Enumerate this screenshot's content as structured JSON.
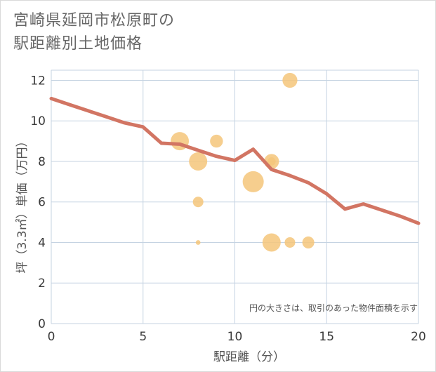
{
  "title": {
    "line1": "宮崎県延岡市松原町の",
    "line2": "駅距離別土地価格"
  },
  "colors": {
    "grid": "#c5d3e2",
    "line": "#d27563",
    "bubble": "#f5c57a"
  },
  "chart_data": {
    "type": "scatter",
    "xlabel": "駅距離（分）",
    "ylabel": "坪（3.3㎡）単価（万円）",
    "note": "円の大きさは、取引のあった物件面積を示す",
    "xlim": [
      0,
      20
    ],
    "ylim": [
      0,
      12.5
    ],
    "xticks": [
      0,
      5,
      10,
      15,
      20
    ],
    "yticks": [
      0,
      2,
      4,
      6,
      8,
      10,
      12
    ],
    "grid": true,
    "bubbles": [
      {
        "x": 7,
        "y": 9,
        "size": 3
      },
      {
        "x": 8,
        "y": 8,
        "size": 3
      },
      {
        "x": 8,
        "y": 6,
        "size": 1
      },
      {
        "x": 8,
        "y": 4,
        "size": 0.2
      },
      {
        "x": 9,
        "y": 9,
        "size": 1.5
      },
      {
        "x": 11,
        "y": 7,
        "size": 4
      },
      {
        "x": 12,
        "y": 8,
        "size": 2
      },
      {
        "x": 12,
        "y": 8,
        "size": 0.6
      },
      {
        "x": 12,
        "y": 4,
        "size": 3
      },
      {
        "x": 13,
        "y": 12,
        "size": 2
      },
      {
        "x": 13,
        "y": 4,
        "size": 1
      },
      {
        "x": 14,
        "y": 4,
        "size": 1.3
      }
    ],
    "trend": {
      "x": [
        0,
        1,
        2,
        3,
        4,
        5,
        6,
        7,
        8,
        9,
        10,
        11,
        12,
        13,
        14,
        15,
        16,
        17,
        18,
        19,
        20
      ],
      "y": [
        11.1,
        10.8,
        10.5,
        10.2,
        9.9,
        9.7,
        8.9,
        8.85,
        8.55,
        8.25,
        8.05,
        8.6,
        7.6,
        7.3,
        6.95,
        6.4,
        5.65,
        5.9,
        5.6,
        5.3,
        4.95
      ]
    }
  }
}
